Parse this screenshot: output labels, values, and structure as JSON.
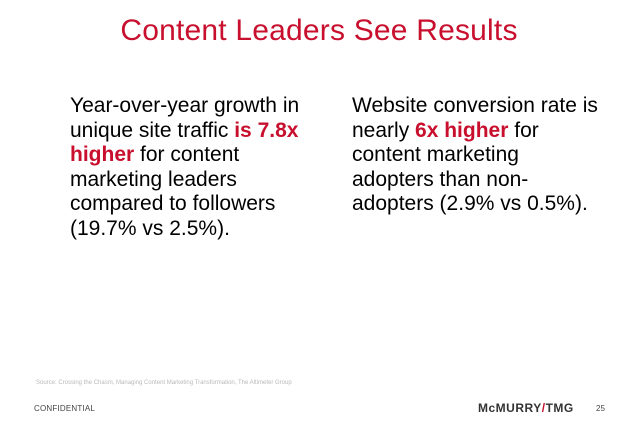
{
  "slide": {
    "title": "Content Leaders See Results",
    "left_stat": {
      "pre": "Year-over-year growth in unique site traffic ",
      "highlight": "is 7.8x higher",
      "post": " for content marketing leaders compared to followers (19.7% vs 2.5%)."
    },
    "right_stat": {
      "pre": "Website conversion rate is nearly ",
      "highlight": "6x higher",
      "post": " for content marketing adopters than non-adopters (2.9% vs 0.5%)."
    },
    "source": "Source: Crossing the Chasm, Managing Content Marketing Transformation, The Altimeter Group",
    "footer": {
      "label": "CONFIDENTIAL",
      "logo_part1": "McMURRY",
      "logo_slash": "/",
      "logo_part2": "TMG",
      "page_number": "25"
    },
    "colors": {
      "accent": "#c8102e",
      "text": "#000000",
      "muted": "#b9b9b9"
    }
  }
}
